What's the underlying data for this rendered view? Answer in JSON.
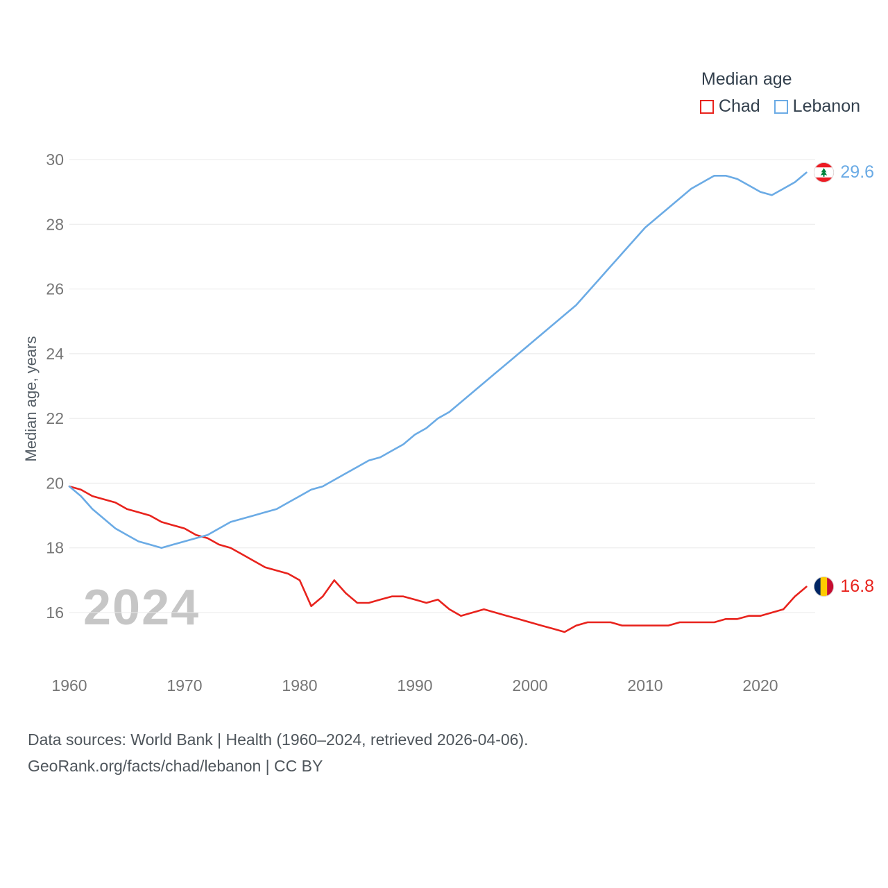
{
  "legend": {
    "title": "Median age",
    "series": [
      {
        "label": "Chad",
        "color": "#e8231d"
      },
      {
        "label": "Lebanon",
        "color": "#6babe5"
      }
    ]
  },
  "watermark": "2024",
  "footer": {
    "line1": "Data sources: World Bank | Health (1960–2024, retrieved 2026-04-06).",
    "line2": "GeoRank.org/facts/chad/lebanon | CC BY"
  },
  "colors": {
    "grid": "#e8e8e8",
    "tick_text": "#767676",
    "legend_text": "#34414e",
    "watermark": "#c6c6c6",
    "footer_text": "#4f565c",
    "chad_red": "#e8231d",
    "lebanon_blue": "#6babe5"
  },
  "chart_data": {
    "type": "line",
    "title": "Median age",
    "ylabel": "Median age, years",
    "xlabel": "",
    "ylim": [
      15,
      30.5
    ],
    "xlim": [
      1960,
      2024
    ],
    "yticks": [
      16,
      18,
      20,
      22,
      24,
      26,
      28,
      30
    ],
    "xticks": [
      1960,
      1970,
      1980,
      1990,
      2000,
      2010,
      2020
    ],
    "grid": "horizontal",
    "legend_position": "top-right",
    "x": [
      1960,
      1961,
      1962,
      1963,
      1964,
      1965,
      1966,
      1967,
      1968,
      1969,
      1970,
      1971,
      1972,
      1973,
      1974,
      1975,
      1976,
      1977,
      1978,
      1979,
      1980,
      1981,
      1982,
      1983,
      1984,
      1985,
      1986,
      1987,
      1988,
      1989,
      1990,
      1991,
      1992,
      1993,
      1994,
      1995,
      1996,
      1997,
      1998,
      1999,
      2000,
      2001,
      2002,
      2003,
      2004,
      2005,
      2006,
      2007,
      2008,
      2009,
      2010,
      2011,
      2012,
      2013,
      2014,
      2015,
      2016,
      2017,
      2018,
      2019,
      2020,
      2021,
      2022,
      2023,
      2024
    ],
    "series": [
      {
        "name": "Chad",
        "color": "#e8231d",
        "values": [
          19.9,
          19.8,
          19.6,
          19.5,
          19.4,
          19.2,
          19.1,
          19.0,
          18.8,
          18.7,
          18.6,
          18.4,
          18.3,
          18.1,
          18.0,
          17.8,
          17.6,
          17.4,
          17.3,
          17.2,
          17.0,
          16.2,
          16.5,
          17.0,
          16.6,
          16.3,
          16.3,
          16.4,
          16.5,
          16.5,
          16.4,
          16.3,
          16.4,
          16.1,
          15.9,
          16.0,
          16.1,
          16.0,
          15.9,
          15.8,
          15.7,
          15.6,
          15.5,
          15.4,
          15.6,
          15.7,
          15.7,
          15.7,
          15.6,
          15.6,
          15.6,
          15.6,
          15.6,
          15.7,
          15.7,
          15.7,
          15.7,
          15.8,
          15.8,
          15.9,
          15.9,
          16.0,
          16.1,
          16.5,
          16.8
        ]
      },
      {
        "name": "Lebanon",
        "color": "#6babe5",
        "values": [
          19.9,
          19.6,
          19.2,
          18.9,
          18.6,
          18.4,
          18.2,
          18.1,
          18.0,
          18.1,
          18.2,
          18.3,
          18.4,
          18.6,
          18.8,
          18.9,
          19.0,
          19.1,
          19.2,
          19.4,
          19.6,
          19.8,
          19.9,
          20.1,
          20.3,
          20.5,
          20.7,
          20.8,
          21.0,
          21.2,
          21.5,
          21.7,
          22.0,
          22.2,
          22.5,
          22.8,
          23.1,
          23.4,
          23.7,
          24.0,
          24.3,
          24.6,
          24.9,
          25.2,
          25.5,
          25.9,
          26.3,
          26.7,
          27.1,
          27.5,
          27.9,
          28.2,
          28.5,
          28.8,
          29.1,
          29.3,
          29.5,
          29.5,
          29.4,
          29.2,
          29.0,
          28.9,
          29.1,
          29.3,
          29.6
        ]
      }
    ],
    "end_labels": {
      "Chad": "16.8",
      "Lebanon": "29.6"
    }
  }
}
